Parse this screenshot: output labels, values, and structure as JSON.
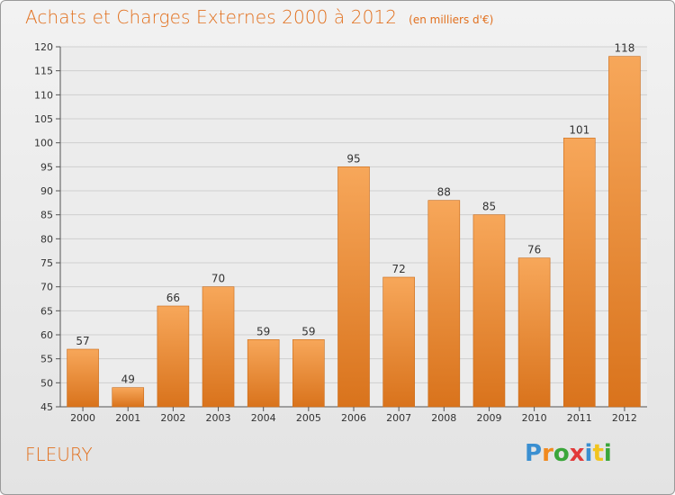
{
  "header": {
    "title": "Achats et Charges Externes 2000 à 2012",
    "subtitle": "(en milliers d'€)"
  },
  "place": "FLEURY",
  "logo": {
    "letters": [
      "P",
      "r",
      "o",
      "x",
      "i",
      "t",
      "i"
    ],
    "colors": [
      "#3a8fd1",
      "#f18a1f",
      "#3aa63a",
      "#e23a3a",
      "#3a8fd1",
      "#f1c41f",
      "#3aa63a"
    ]
  },
  "chart_data": {
    "type": "bar",
    "categories": [
      "2000",
      "2001",
      "2002",
      "2003",
      "2004",
      "2005",
      "2006",
      "2007",
      "2008",
      "2009",
      "2010",
      "2011",
      "2012"
    ],
    "values": [
      57,
      49,
      66,
      70,
      59,
      59,
      95,
      72,
      88,
      85,
      76,
      101,
      118
    ],
    "title": "Achats et Charges Externes 2000 à 2012",
    "ylim": [
      45,
      120
    ],
    "yticks": [
      45,
      50,
      55,
      60,
      65,
      70,
      75,
      80,
      85,
      90,
      95,
      100,
      105,
      110,
      115,
      120
    ],
    "grid": true,
    "bar_color": "#f29b45"
  }
}
